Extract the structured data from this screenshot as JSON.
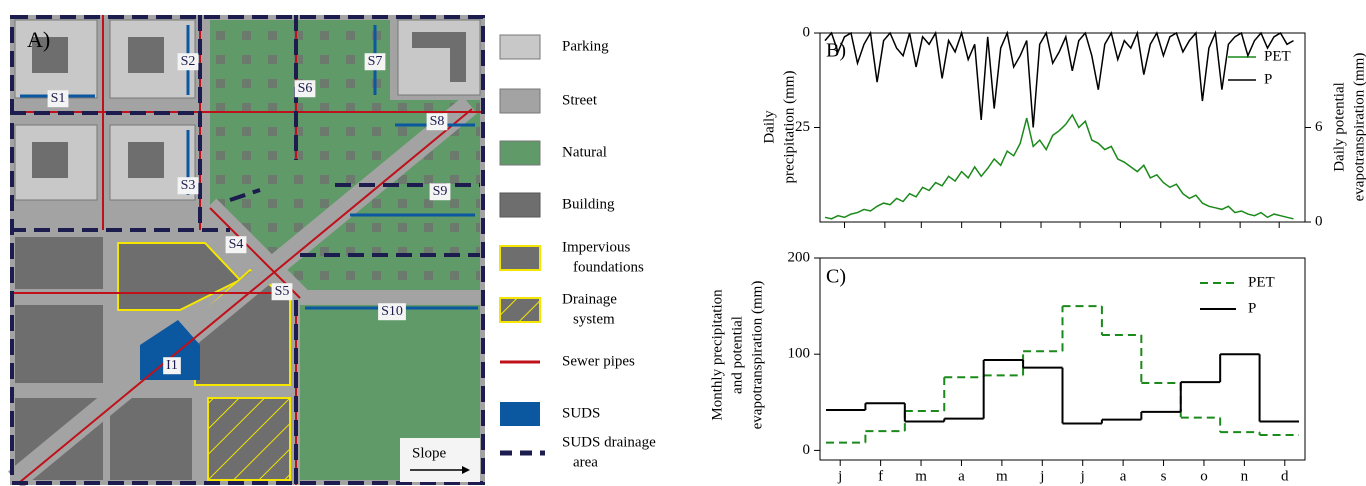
{
  "map": {
    "panel_label": "A)",
    "labels": [
      "S1",
      "S2",
      "S3",
      "S4",
      "S5",
      "S6",
      "S7",
      "S8",
      "S9",
      "S10",
      "I1"
    ],
    "slope": "Slope"
  },
  "legend": [
    {
      "lines": [
        "Parking"
      ]
    },
    {
      "lines": [
        "Street"
      ]
    },
    {
      "lines": [
        "Natural"
      ]
    },
    {
      "lines": [
        "Building"
      ]
    },
    {
      "lines": [
        "Impervious",
        "foundations"
      ]
    },
    {
      "lines": [
        "Drainage",
        "system"
      ]
    },
    {
      "lines": [
        "Sewer pipes"
      ]
    },
    {
      "lines": [
        "SUDS"
      ]
    },
    {
      "lines": [
        "SUDS drainage",
        "area"
      ]
    }
  ],
  "chart_data": [
    {
      "type": "line",
      "panel_label": "B)",
      "y_label": [
        "Daily",
        "precipitation (mm)"
      ],
      "y2_label": [
        "Daily potential",
        "evapotranspiration (mm)"
      ],
      "x": [
        0,
        5,
        10,
        15,
        20,
        25,
        30,
        35,
        40,
        45,
        50,
        55,
        60,
        65,
        70,
        75,
        80,
        85,
        90,
        95,
        100,
        105,
        110,
        115,
        120,
        125,
        130,
        135,
        140,
        145,
        150,
        155,
        160,
        165,
        170,
        175,
        180,
        185,
        190,
        195,
        200,
        205,
        210,
        215,
        220,
        225,
        230,
        235,
        240,
        245,
        250,
        255,
        260,
        265,
        270,
        275,
        280,
        285,
        290,
        295,
        300,
        305,
        310,
        315,
        320,
        325,
        330,
        335,
        340,
        345,
        350,
        355,
        360
      ],
      "xlim": [
        0,
        365
      ],
      "xticks": [
        15,
        46,
        74,
        105,
        135,
        166,
        196,
        227,
        258,
        288,
        319,
        349
      ],
      "ylim": [
        0,
        50
      ],
      "y_inverted": true,
      "yticks": [
        0,
        25
      ],
      "y2lim": [
        0,
        12
      ],
      "y2ticks": [
        0,
        6
      ],
      "legend": "upper right",
      "series": [
        {
          "name": "PET",
          "color": "#1a8a1a",
          "axis": "y2",
          "values": [
            0.3,
            0.2,
            0.4,
            0.3,
            0.5,
            0.6,
            0.8,
            0.7,
            1.0,
            1.2,
            1.1,
            1.5,
            1.3,
            1.8,
            1.6,
            2.2,
            2.0,
            2.5,
            2.3,
            2.9,
            2.6,
            3.2,
            2.8,
            3.5,
            2.9,
            3.4,
            4.0,
            3.6,
            4.5,
            4.2,
            5.0,
            6.6,
            4.8,
            5.2,
            4.6,
            5.5,
            5.8,
            6.2,
            6.8,
            6.0,
            6.4,
            5.2,
            5.0,
            4.6,
            4.8,
            4.0,
            3.8,
            3.5,
            3.2,
            3.6,
            2.8,
            3.0,
            2.5,
            2.2,
            2.4,
            1.8,
            1.5,
            1.7,
            1.2,
            1.0,
            0.9,
            0.8,
            1.0,
            0.6,
            0.7,
            0.5,
            0.4,
            0.6,
            0.3,
            0.5,
            0.4,
            0.3,
            0.2
          ]
        },
        {
          "name": "P",
          "color": "#000000",
          "axis": "y",
          "values": [
            2,
            0,
            5,
            1,
            0,
            8,
            3,
            0,
            13,
            2,
            0,
            4,
            6,
            0,
            9,
            1,
            3,
            0,
            12,
            2,
            5,
            0,
            7,
            3,
            23,
            1,
            20,
            4,
            0,
            9,
            6,
            2,
            25,
            3,
            0,
            8,
            5,
            1,
            10,
            2,
            0,
            6,
            15,
            3,
            0,
            7,
            2,
            4,
            0,
            11,
            3,
            0,
            6,
            1,
            0,
            5,
            2,
            0,
            18,
            4,
            0,
            15,
            3,
            1,
            0,
            6,
            2,
            0,
            4,
            1,
            0,
            3,
            2
          ]
        }
      ]
    },
    {
      "type": "step",
      "panel_label": "C)",
      "y_label": [
        "Monthly precipitation",
        "and potential",
        "evapotranspiration (mm)"
      ],
      "categories": [
        "j",
        "f",
        "m",
        "a",
        "m",
        "j",
        "j",
        "a",
        "s",
        "o",
        "n",
        "d"
      ],
      "ylim": [
        -10,
        200
      ],
      "yticks": [
        0,
        100,
        200
      ],
      "legend": "upper right",
      "series": [
        {
          "name": "PET",
          "color": "#1a8a1a",
          "dashed": true,
          "values": [
            8,
            20,
            41,
            76,
            78,
            103,
            150,
            120,
            70,
            34,
            19,
            16
          ]
        },
        {
          "name": "P",
          "color": "#000000",
          "dashed": false,
          "values": [
            42,
            49,
            30,
            33,
            94,
            86,
            28,
            32,
            40,
            71,
            100,
            30
          ]
        }
      ]
    }
  ]
}
